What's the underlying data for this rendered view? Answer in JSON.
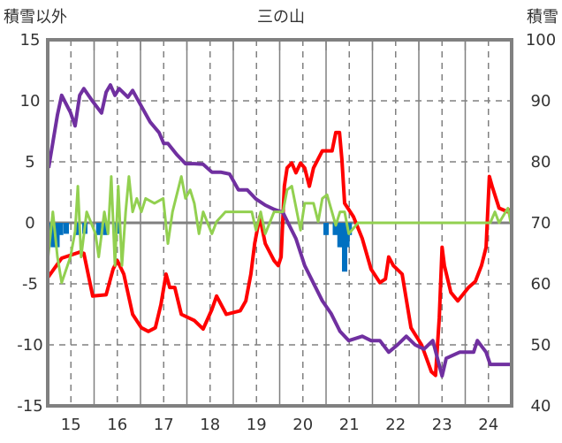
{
  "chart_data": {
    "type": "line",
    "title": "三の山",
    "ylabel_left": "積雪以外",
    "ylabel_right": "積雪",
    "xlim": [
      14.5,
      24.5
    ],
    "ylim_left": [
      -15,
      15
    ],
    "ylim_right": [
      40,
      100
    ],
    "xticks": [
      15,
      16,
      17,
      18,
      19,
      20,
      21,
      22,
      23,
      24
    ],
    "yticks_left": [
      15,
      10,
      5,
      0,
      -5,
      -10,
      -15
    ],
    "yticks_right": [
      100,
      90,
      80,
      70,
      60,
      50,
      40
    ],
    "grid": true,
    "colors": {
      "red": "#ff0000",
      "purple": "#7030a0",
      "green": "#92d050",
      "blue": "#0070c0"
    },
    "series": [
      {
        "name": "red",
        "axis": "left",
        "color": "#ff0000",
        "points": [
          [
            14.5,
            -4.5
          ],
          [
            14.8,
            -2.9
          ],
          [
            15.19,
            -2.4
          ],
          [
            15.28,
            -2.5
          ],
          [
            15.47,
            -6.0
          ],
          [
            15.76,
            -5.9
          ],
          [
            15.91,
            -3.8
          ],
          [
            16.0,
            -3.1
          ],
          [
            16.14,
            -4.2
          ],
          [
            16.33,
            -7.5
          ],
          [
            16.52,
            -8.6
          ],
          [
            16.67,
            -8.9
          ],
          [
            16.82,
            -8.6
          ],
          [
            16.94,
            -6.7
          ],
          [
            17.05,
            -4.2
          ],
          [
            17.13,
            -5.3
          ],
          [
            17.24,
            -5.3
          ],
          [
            17.38,
            -7.5
          ],
          [
            17.66,
            -8.0
          ],
          [
            17.85,
            -8.7
          ],
          [
            18.04,
            -7.1
          ],
          [
            18.14,
            -6.0
          ],
          [
            18.35,
            -7.5
          ],
          [
            18.65,
            -7.2
          ],
          [
            18.77,
            -6.4
          ],
          [
            18.88,
            -4.2
          ],
          [
            18.96,
            -1.7
          ],
          [
            19.07,
            0.5
          ],
          [
            19.19,
            -1.7
          ],
          [
            19.38,
            -3.1
          ],
          [
            19.47,
            -3.5
          ],
          [
            19.53,
            -2.8
          ],
          [
            19.6,
            3.0
          ],
          [
            19.66,
            4.5
          ],
          [
            19.76,
            4.9
          ],
          [
            19.85,
            4.1
          ],
          [
            19.95,
            4.9
          ],
          [
            20.04,
            4.5
          ],
          [
            20.14,
            3.0
          ],
          [
            20.23,
            4.5
          ],
          [
            20.42,
            5.9
          ],
          [
            20.63,
            5.9
          ],
          [
            20.71,
            7.4
          ],
          [
            20.79,
            7.4
          ],
          [
            20.84,
            5.2
          ],
          [
            20.9,
            1.6
          ],
          [
            21.09,
            0.5
          ],
          [
            21.28,
            -1.3
          ],
          [
            21.47,
            -3.8
          ],
          [
            21.66,
            -4.9
          ],
          [
            21.78,
            -4.6
          ],
          [
            21.85,
            -2.8
          ],
          [
            21.95,
            -3.5
          ],
          [
            22.14,
            -4.2
          ],
          [
            22.33,
            -8.6
          ],
          [
            22.56,
            -10.0
          ],
          [
            22.77,
            -12.2
          ],
          [
            22.86,
            -12.5
          ],
          [
            22.94,
            -7.8
          ],
          [
            23.0,
            -2.0
          ],
          [
            23.05,
            -3.5
          ],
          [
            23.19,
            -5.7
          ],
          [
            23.34,
            -6.4
          ],
          [
            23.57,
            -5.3
          ],
          [
            23.72,
            -4.8
          ],
          [
            23.85,
            -3.5
          ],
          [
            23.95,
            -2.0
          ],
          [
            24.02,
            3.8
          ],
          [
            24.08,
            3.0
          ],
          [
            24.23,
            1.2
          ],
          [
            24.42,
            0.9
          ],
          [
            24.48,
            1.1
          ]
        ]
      },
      {
        "name": "purple",
        "axis": "right",
        "color": "#7030a0",
        "points": [
          [
            14.52,
            79.0
          ],
          [
            14.71,
            87.7
          ],
          [
            14.8,
            90.9
          ],
          [
            14.99,
            88.1
          ],
          [
            15.09,
            85.9
          ],
          [
            15.19,
            90.9
          ],
          [
            15.28,
            92.0
          ],
          [
            15.47,
            89.9
          ],
          [
            15.66,
            88.0
          ],
          [
            15.76,
            91.4
          ],
          [
            15.85,
            92.6
          ],
          [
            15.95,
            90.9
          ],
          [
            16.04,
            92.0
          ],
          [
            16.23,
            90.6
          ],
          [
            16.33,
            91.7
          ],
          [
            16.52,
            89.1
          ],
          [
            16.71,
            86.5
          ],
          [
            16.9,
            84.8
          ],
          [
            17.0,
            83.0
          ],
          [
            17.09,
            83.0
          ],
          [
            17.28,
            81.2
          ],
          [
            17.47,
            79.7
          ],
          [
            17.66,
            79.7
          ],
          [
            17.85,
            79.6
          ],
          [
            18.04,
            78.3
          ],
          [
            18.23,
            78.3
          ],
          [
            18.42,
            78.0
          ],
          [
            18.61,
            75.4
          ],
          [
            18.8,
            75.4
          ],
          [
            18.99,
            73.9
          ],
          [
            19.19,
            72.9
          ],
          [
            19.38,
            72.2
          ],
          [
            19.57,
            71.7
          ],
          [
            19.66,
            70.3
          ],
          [
            19.85,
            67.4
          ],
          [
            20.04,
            63.0
          ],
          [
            20.23,
            60.1
          ],
          [
            20.42,
            57.2
          ],
          [
            20.61,
            55.1
          ],
          [
            20.8,
            52.2
          ],
          [
            20.99,
            50.7
          ],
          [
            21.28,
            51.4
          ],
          [
            21.47,
            50.7
          ],
          [
            21.66,
            50.7
          ],
          [
            21.85,
            48.8
          ],
          [
            22.04,
            50.0
          ],
          [
            22.23,
            51.4
          ],
          [
            22.42,
            50.0
          ],
          [
            22.61,
            49.3
          ],
          [
            22.8,
            50.7
          ],
          [
            23.0,
            44.9
          ],
          [
            23.09,
            47.8
          ],
          [
            23.38,
            48.8
          ],
          [
            23.68,
            48.8
          ],
          [
            23.76,
            50.7
          ],
          [
            23.95,
            48.8
          ],
          [
            24.04,
            46.8
          ],
          [
            24.48,
            46.8
          ]
        ]
      },
      {
        "name": "green",
        "axis": "left",
        "color": "#92d050",
        "points": [
          [
            14.5,
            -3.1
          ],
          [
            14.61,
            0.9
          ],
          [
            14.71,
            -2.8
          ],
          [
            14.8,
            -4.9
          ],
          [
            14.99,
            -2.8
          ],
          [
            15.09,
            -0.7
          ],
          [
            15.15,
            3.0
          ],
          [
            15.22,
            -2.8
          ],
          [
            15.34,
            0.9
          ],
          [
            15.53,
            -0.9
          ],
          [
            15.6,
            -2.8
          ],
          [
            15.72,
            0.9
          ],
          [
            15.8,
            -0.9
          ],
          [
            15.87,
            3.8
          ],
          [
            15.95,
            -3.5
          ],
          [
            16.02,
            3.0
          ],
          [
            16.1,
            -3.5
          ],
          [
            16.18,
            0.9
          ],
          [
            16.25,
            3.8
          ],
          [
            16.33,
            0.9
          ],
          [
            16.42,
            2.0
          ],
          [
            16.52,
            0.9
          ],
          [
            16.61,
            2.0
          ],
          [
            16.8,
            1.6
          ],
          [
            16.99,
            2.0
          ],
          [
            17.09,
            -1.7
          ],
          [
            17.19,
            0.9
          ],
          [
            17.38,
            3.8
          ],
          [
            17.47,
            2.0
          ],
          [
            17.57,
            2.7
          ],
          [
            17.66,
            1.6
          ],
          [
            17.76,
            -0.9
          ],
          [
            17.85,
            0.9
          ],
          [
            18.04,
            -0.9
          ],
          [
            18.14,
            0.1
          ],
          [
            18.33,
            0.9
          ],
          [
            18.71,
            0.9
          ],
          [
            18.9,
            0.9
          ],
          [
            18.99,
            -0.6
          ],
          [
            19.09,
            0.9
          ],
          [
            19.19,
            -0.9
          ],
          [
            19.38,
            0.9
          ],
          [
            19.57,
            0.9
          ],
          [
            19.66,
            2.7
          ],
          [
            19.76,
            3.0
          ],
          [
            19.95,
            -0.6
          ],
          [
            20.04,
            1.6
          ],
          [
            20.23,
            1.6
          ],
          [
            20.33,
            0.1
          ],
          [
            20.42,
            2.0
          ],
          [
            20.52,
            2.3
          ],
          [
            20.71,
            -0.2
          ],
          [
            20.8,
            0.9
          ],
          [
            20.9,
            0.9
          ],
          [
            20.99,
            -0.9
          ],
          [
            21.19,
            0
          ],
          [
            24.04,
            0
          ],
          [
            24.14,
            0.9
          ],
          [
            24.23,
            0
          ],
          [
            24.42,
            1.2
          ],
          [
            24.48,
            0
          ]
        ]
      }
    ],
    "bars": {
      "name": "blue",
      "axis": "left",
      "color": "#0070c0",
      "points": [
        [
          14.55,
          -1
        ],
        [
          14.62,
          -2
        ],
        [
          14.7,
          -2
        ],
        [
          14.78,
          -1
        ],
        [
          14.9,
          -0.9
        ],
        [
          15.15,
          -1
        ],
        [
          15.3,
          -0.9
        ],
        [
          15.6,
          -1
        ],
        [
          15.75,
          -1
        ],
        [
          16.0,
          -0.9
        ],
        [
          20.5,
          -1
        ],
        [
          20.7,
          -1
        ],
        [
          20.8,
          -2
        ],
        [
          20.85,
          -2
        ],
        [
          20.9,
          -4
        ],
        [
          20.95,
          -2
        ],
        [
          21.0,
          -1
        ]
      ]
    }
  }
}
